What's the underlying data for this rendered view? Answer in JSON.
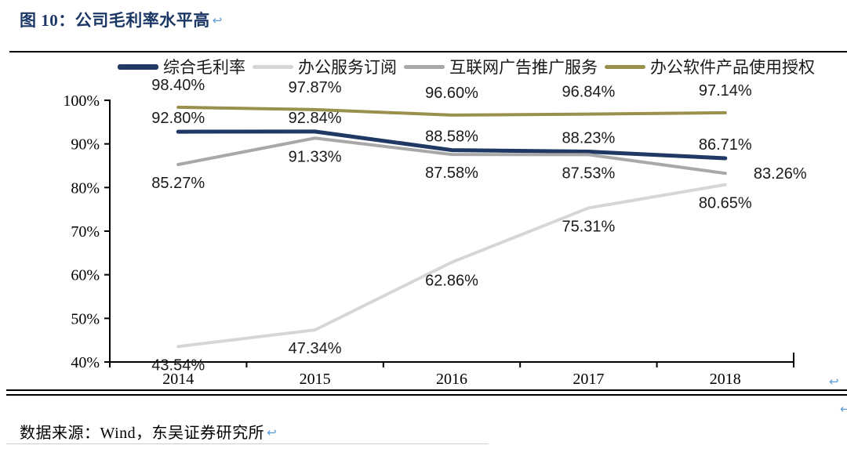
{
  "title": {
    "text": "图 10：公司毛利率水平高",
    "return_mark": "↩"
  },
  "source": {
    "text": "数据来源：Wind，东吴证券研究所",
    "return_mark": "↩"
  },
  "page_marks": {
    "chart_bottom_return": "↩",
    "bottom_right_return": "↩"
  },
  "colors": {
    "title": "#1B3766",
    "return_mark": "#5B9BD5",
    "axis": "#000000",
    "data_label": "#1a1a1a"
  },
  "chart_data": {
    "type": "line",
    "title": "公司毛利率水平高",
    "categories": [
      "2014",
      "2015",
      "2016",
      "2017",
      "2018"
    ],
    "series": [
      {
        "name": "综合毛利率",
        "color": "#1F3864",
        "stroke_width": 5,
        "values": [
          92.8,
          92.84,
          88.58,
          88.23,
          86.71
        ],
        "labels": [
          "92.80%",
          "92.84%",
          "88.58%",
          "88.23%",
          "86.71%"
        ],
        "label_position": "above"
      },
      {
        "name": "办公服务订阅",
        "color": "#D6D6D6",
        "stroke_width": 4,
        "values": [
          43.54,
          47.34,
          62.86,
          75.31,
          80.65
        ],
        "labels": [
          "43.54%",
          "47.34%",
          "62.86%",
          "75.31%",
          "80.65%"
        ],
        "label_position": "below"
      },
      {
        "name": "互联网广告推广服务",
        "color": "#A8A8A8",
        "stroke_width": 4,
        "values": [
          85.27,
          91.33,
          87.58,
          87.53,
          83.26
        ],
        "labels": [
          "85.27%",
          "91.33%",
          "87.58%",
          "87.53%",
          "83.26%"
        ],
        "label_position": "below",
        "label_overrides": {
          "4": {
            "dx": 70,
            "dy": 7
          }
        }
      },
      {
        "name": "办公软件产品使用授权",
        "color": "#98904C",
        "stroke_width": 4,
        "values": [
          98.4,
          97.87,
          96.6,
          96.84,
          97.14
        ],
        "labels": [
          "98.40%",
          "97.87%",
          "96.60%",
          "96.84%",
          "97.14%"
        ],
        "label_position": "above_far"
      }
    ],
    "ylim": [
      40,
      100
    ],
    "ytick_step": 10,
    "ytick_labels": [
      "40%",
      "50%",
      "60%",
      "70%",
      "80%",
      "90%",
      "100%"
    ],
    "grid": false,
    "legend_position": "top",
    "xlabel": "",
    "ylabel": ""
  }
}
